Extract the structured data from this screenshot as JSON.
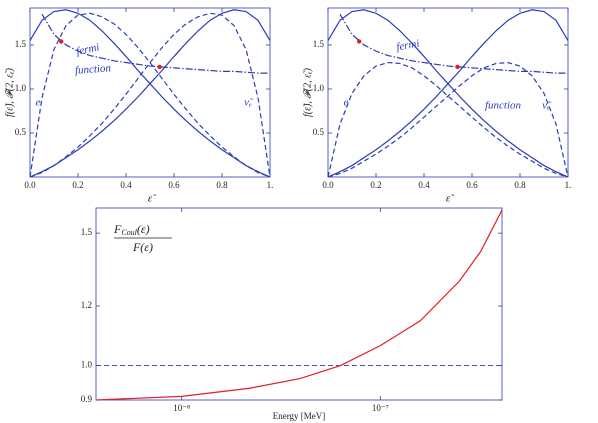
{
  "chart_data": [
    {
      "type": "line",
      "xlabel": "ε̃",
      "ylabel": "f(ε̃),  𝓕(2, ε̃ₑ)",
      "x": [
        0,
        0.05,
        0.1,
        0.15,
        0.2,
        0.25,
        0.3,
        0.35,
        0.4,
        0.45,
        0.5,
        0.55,
        0.6,
        0.65,
        0.7,
        0.75,
        0.8,
        0.85,
        0.9,
        0.95,
        1
      ],
      "xlim": [
        0,
        1
      ],
      "xticks": [
        {
          "value": 0,
          "label": "0.0"
        },
        0.2,
        0.4,
        0.6,
        0.8,
        {
          "value": 1,
          "label": "1."
        }
      ],
      "ylim": [
        0,
        1.92
      ],
      "yticks": [
        0.5,
        {
          "value": 1,
          "label": "1.0"
        },
        1.5
      ],
      "series": [
        {
          "color": "#2b3cb8",
          "dash": "solid",
          "values": [
            1.55,
            1.78,
            1.88,
            1.9,
            1.86,
            1.78,
            1.66,
            1.52,
            1.37,
            1.21,
            1.06,
            0.91,
            0.77,
            0.64,
            0.52,
            0.41,
            0.31,
            0.22,
            0.13,
            0.06,
            0
          ]
        },
        {
          "color": "#2b3cb8",
          "dash": "solid",
          "values": [
            0,
            0.06,
            0.13,
            0.22,
            0.31,
            0.41,
            0.52,
            0.64,
            0.77,
            0.91,
            1.06,
            1.21,
            1.37,
            1.52,
            1.66,
            1.78,
            1.86,
            1.9,
            1.88,
            1.78,
            1.55
          ]
        },
        {
          "color": "#2b3cb8",
          "dash": "dashed",
          "values": [
            0,
            0.9,
            1.45,
            1.72,
            1.84,
            1.86,
            1.82,
            1.74,
            1.62,
            1.47,
            1.3,
            1.12,
            0.94,
            0.77,
            0.61,
            0.47,
            0.34,
            0.23,
            0.13,
            0.05,
            0
          ]
        },
        {
          "color": "#2b3cb8",
          "dash": "dashed",
          "values": [
            0,
            0.05,
            0.13,
            0.23,
            0.34,
            0.47,
            0.61,
            0.77,
            0.94,
            1.12,
            1.3,
            1.47,
            1.62,
            1.74,
            1.82,
            1.86,
            1.84,
            1.72,
            1.45,
            0.9,
            0
          ]
        },
        {
          "color": "#2b3cb8",
          "dash": "dashdot",
          "values": [
            null,
            1.85,
            1.62,
            1.5,
            1.43,
            1.38,
            1.35,
            1.32,
            1.3,
            1.28,
            1.26,
            1.25,
            1.24,
            1.23,
            1.22,
            1.21,
            1.2,
            1.2,
            1.19,
            1.18,
            1.18
          ]
        }
      ],
      "markers": {
        "color": "#e02020",
        "x": [
          0.13,
          0.54
        ],
        "values": [
          1.54,
          1.25
        ]
      },
      "annotations": [
        "fermi",
        "function",
        "e",
        "ν̃ₑ"
      ]
    },
    {
      "type": "line",
      "xlabel": "ε̃",
      "ylabel": "f(ε̃),  𝓕(2, ε̃ₑ)",
      "x": [
        0,
        0.05,
        0.1,
        0.15,
        0.2,
        0.25,
        0.3,
        0.35,
        0.4,
        0.45,
        0.5,
        0.55,
        0.6,
        0.65,
        0.7,
        0.75,
        0.8,
        0.85,
        0.9,
        0.95,
        1
      ],
      "xlim": [
        0,
        1
      ],
      "xticks": [
        {
          "value": 0,
          "label": "0.0"
        },
        0.2,
        0.4,
        0.6,
        0.8,
        {
          "value": 1,
          "label": "1."
        }
      ],
      "ylim": [
        0,
        1.92
      ],
      "yticks": [
        0.5,
        {
          "value": 1,
          "label": "1.0"
        },
        1.5
      ],
      "series": [
        {
          "color": "#2b3cb8",
          "dash": "solid",
          "values": [
            1.55,
            1.78,
            1.88,
            1.9,
            1.86,
            1.78,
            1.66,
            1.52,
            1.37,
            1.21,
            1.06,
            0.91,
            0.77,
            0.64,
            0.52,
            0.41,
            0.31,
            0.22,
            0.13,
            0.06,
            0
          ]
        },
        {
          "color": "#2b3cb8",
          "dash": "solid",
          "values": [
            0,
            0.06,
            0.13,
            0.22,
            0.31,
            0.41,
            0.52,
            0.64,
            0.77,
            0.91,
            1.06,
            1.21,
            1.37,
            1.52,
            1.66,
            1.78,
            1.86,
            1.9,
            1.88,
            1.78,
            1.55
          ]
        },
        {
          "color": "#2b3cb8",
          "dash": "dashed",
          "values": [
            0,
            0.6,
            0.95,
            1.15,
            1.26,
            1.3,
            1.29,
            1.24,
            1.15,
            1.04,
            0.92,
            0.8,
            0.68,
            0.56,
            0.45,
            0.35,
            0.26,
            0.18,
            0.1,
            0.04,
            0
          ]
        },
        {
          "color": "#2b3cb8",
          "dash": "dashed",
          "values": [
            0,
            0.04,
            0.1,
            0.18,
            0.26,
            0.35,
            0.45,
            0.56,
            0.68,
            0.8,
            0.92,
            1.04,
            1.15,
            1.24,
            1.29,
            1.3,
            1.26,
            1.15,
            0.95,
            0.6,
            0
          ]
        },
        {
          "color": "#2b3cb8",
          "dash": "dashdot",
          "values": [
            null,
            1.85,
            1.62,
            1.5,
            1.43,
            1.38,
            1.35,
            1.32,
            1.3,
            1.28,
            1.26,
            1.25,
            1.24,
            1.23,
            1.22,
            1.21,
            1.2,
            1.2,
            1.19,
            1.18,
            1.18
          ]
        }
      ],
      "markers": {
        "color": "#e02020",
        "x": [
          0.13,
          0.54
        ],
        "values": [
          1.54,
          1.25
        ]
      },
      "annotations": [
        "fermi",
        "function",
        "e",
        "ν̃ₑ"
      ]
    },
    {
      "type": "line",
      "xlabel": "Energy [MeV]",
      "xscale": "log",
      "yscale": "log",
      "x": [
        3.7e-09,
        1e-08,
        2.2e-08,
        3.94e-08,
        6.3e-08,
        1e-07,
        1.59e-07,
        2.5e-07,
        3.2e-07,
        4.1e-07
      ],
      "xlim": [
        3.7e-09,
        4.1e-07
      ],
      "xticks": [
        {
          "value": 1e-08,
          "label": "10⁻⁸"
        },
        {
          "value": 1e-07,
          "label": "10⁻⁷"
        }
      ],
      "ylim": [
        0.9,
        1.62
      ],
      "yticks": [
        0.9,
        {
          "value": 1,
          "label": "1.0"
        },
        1.2,
        1.5
      ],
      "series": [
        {
          "color": "#e02020",
          "dash": "solid",
          "values": [
            0.9,
            0.91,
            0.933,
            0.961,
            1.0,
            1.063,
            1.147,
            1.295,
            1.418,
            1.61
          ]
        }
      ],
      "hline": {
        "value": 1,
        "color": "#2b3cb8",
        "dash": "dashed"
      },
      "fraction": {
        "numerator": [
          "F",
          "Coul",
          "(ε)"
        ],
        "denominator": "F(ε)"
      }
    }
  ]
}
